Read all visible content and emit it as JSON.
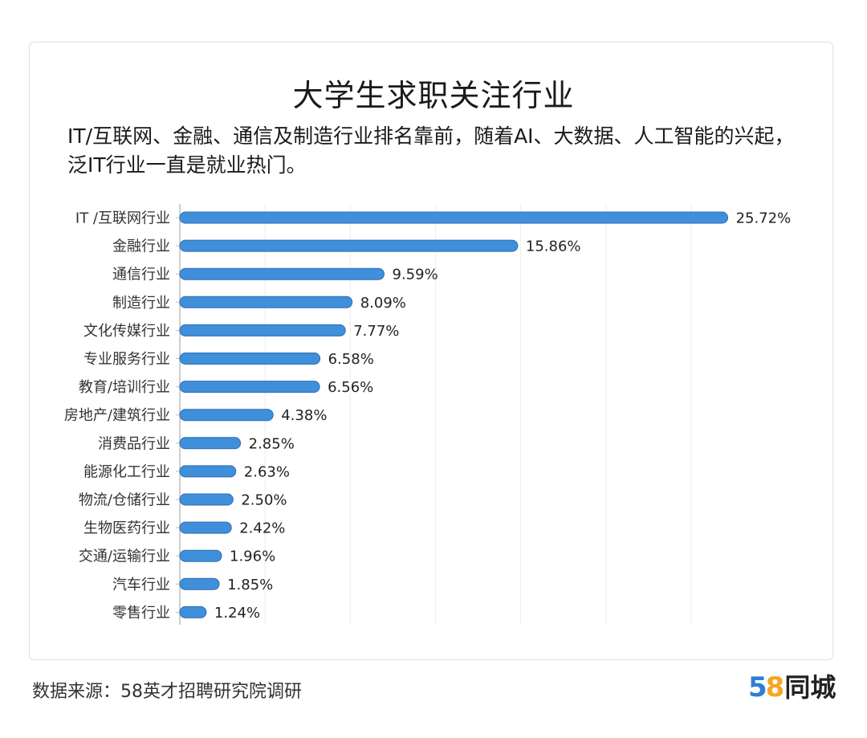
{
  "chart_data": {
    "type": "bar",
    "orientation": "horizontal",
    "title": "大学生求职关注行业",
    "subtitle": "IT/互联网、金融、通信及制造行业排名靠前，随着AI、大数据、人工智能的兴起，泛IT行业一直是就业热门。",
    "categories": [
      "IT /互联网行业",
      "金融行业",
      "通信行业",
      "制造行业",
      "文化传媒行业",
      "专业服务行业",
      "教育/培训行业",
      "房地产/建筑行业",
      "消费品行业",
      "能源化工行业",
      "物流/仓储行业",
      "生物医药行业",
      "交通/运输行业",
      "汽车行业",
      "零售行业"
    ],
    "values": [
      25.72,
      15.86,
      9.59,
      8.09,
      7.77,
      6.58,
      6.56,
      4.38,
      2.85,
      2.63,
      2.5,
      2.42,
      1.96,
      1.85,
      1.24
    ],
    "value_labels": [
      "25.72%",
      "15.86%",
      "9.59%",
      "8.09%",
      "7.77%",
      "6.58%",
      "6.56%",
      "4.38%",
      "2.85%",
      "2.63%",
      "2.50%",
      "2.42%",
      "1.96%",
      "1.85%",
      "1.24%"
    ],
    "unit": "%",
    "xlim": [
      0,
      26
    ],
    "grid": true,
    "bar_color": "#3f8fdb",
    "bar_edge_color": "#2d6fb5"
  },
  "footer": {
    "source": "数据来源：58英才招聘研究院调研"
  },
  "logo": {
    "digit1": "5",
    "digit2": "8",
    "text": "同城",
    "color_digit1": "#2b7fd7",
    "color_digit2": "#f5a623"
  }
}
